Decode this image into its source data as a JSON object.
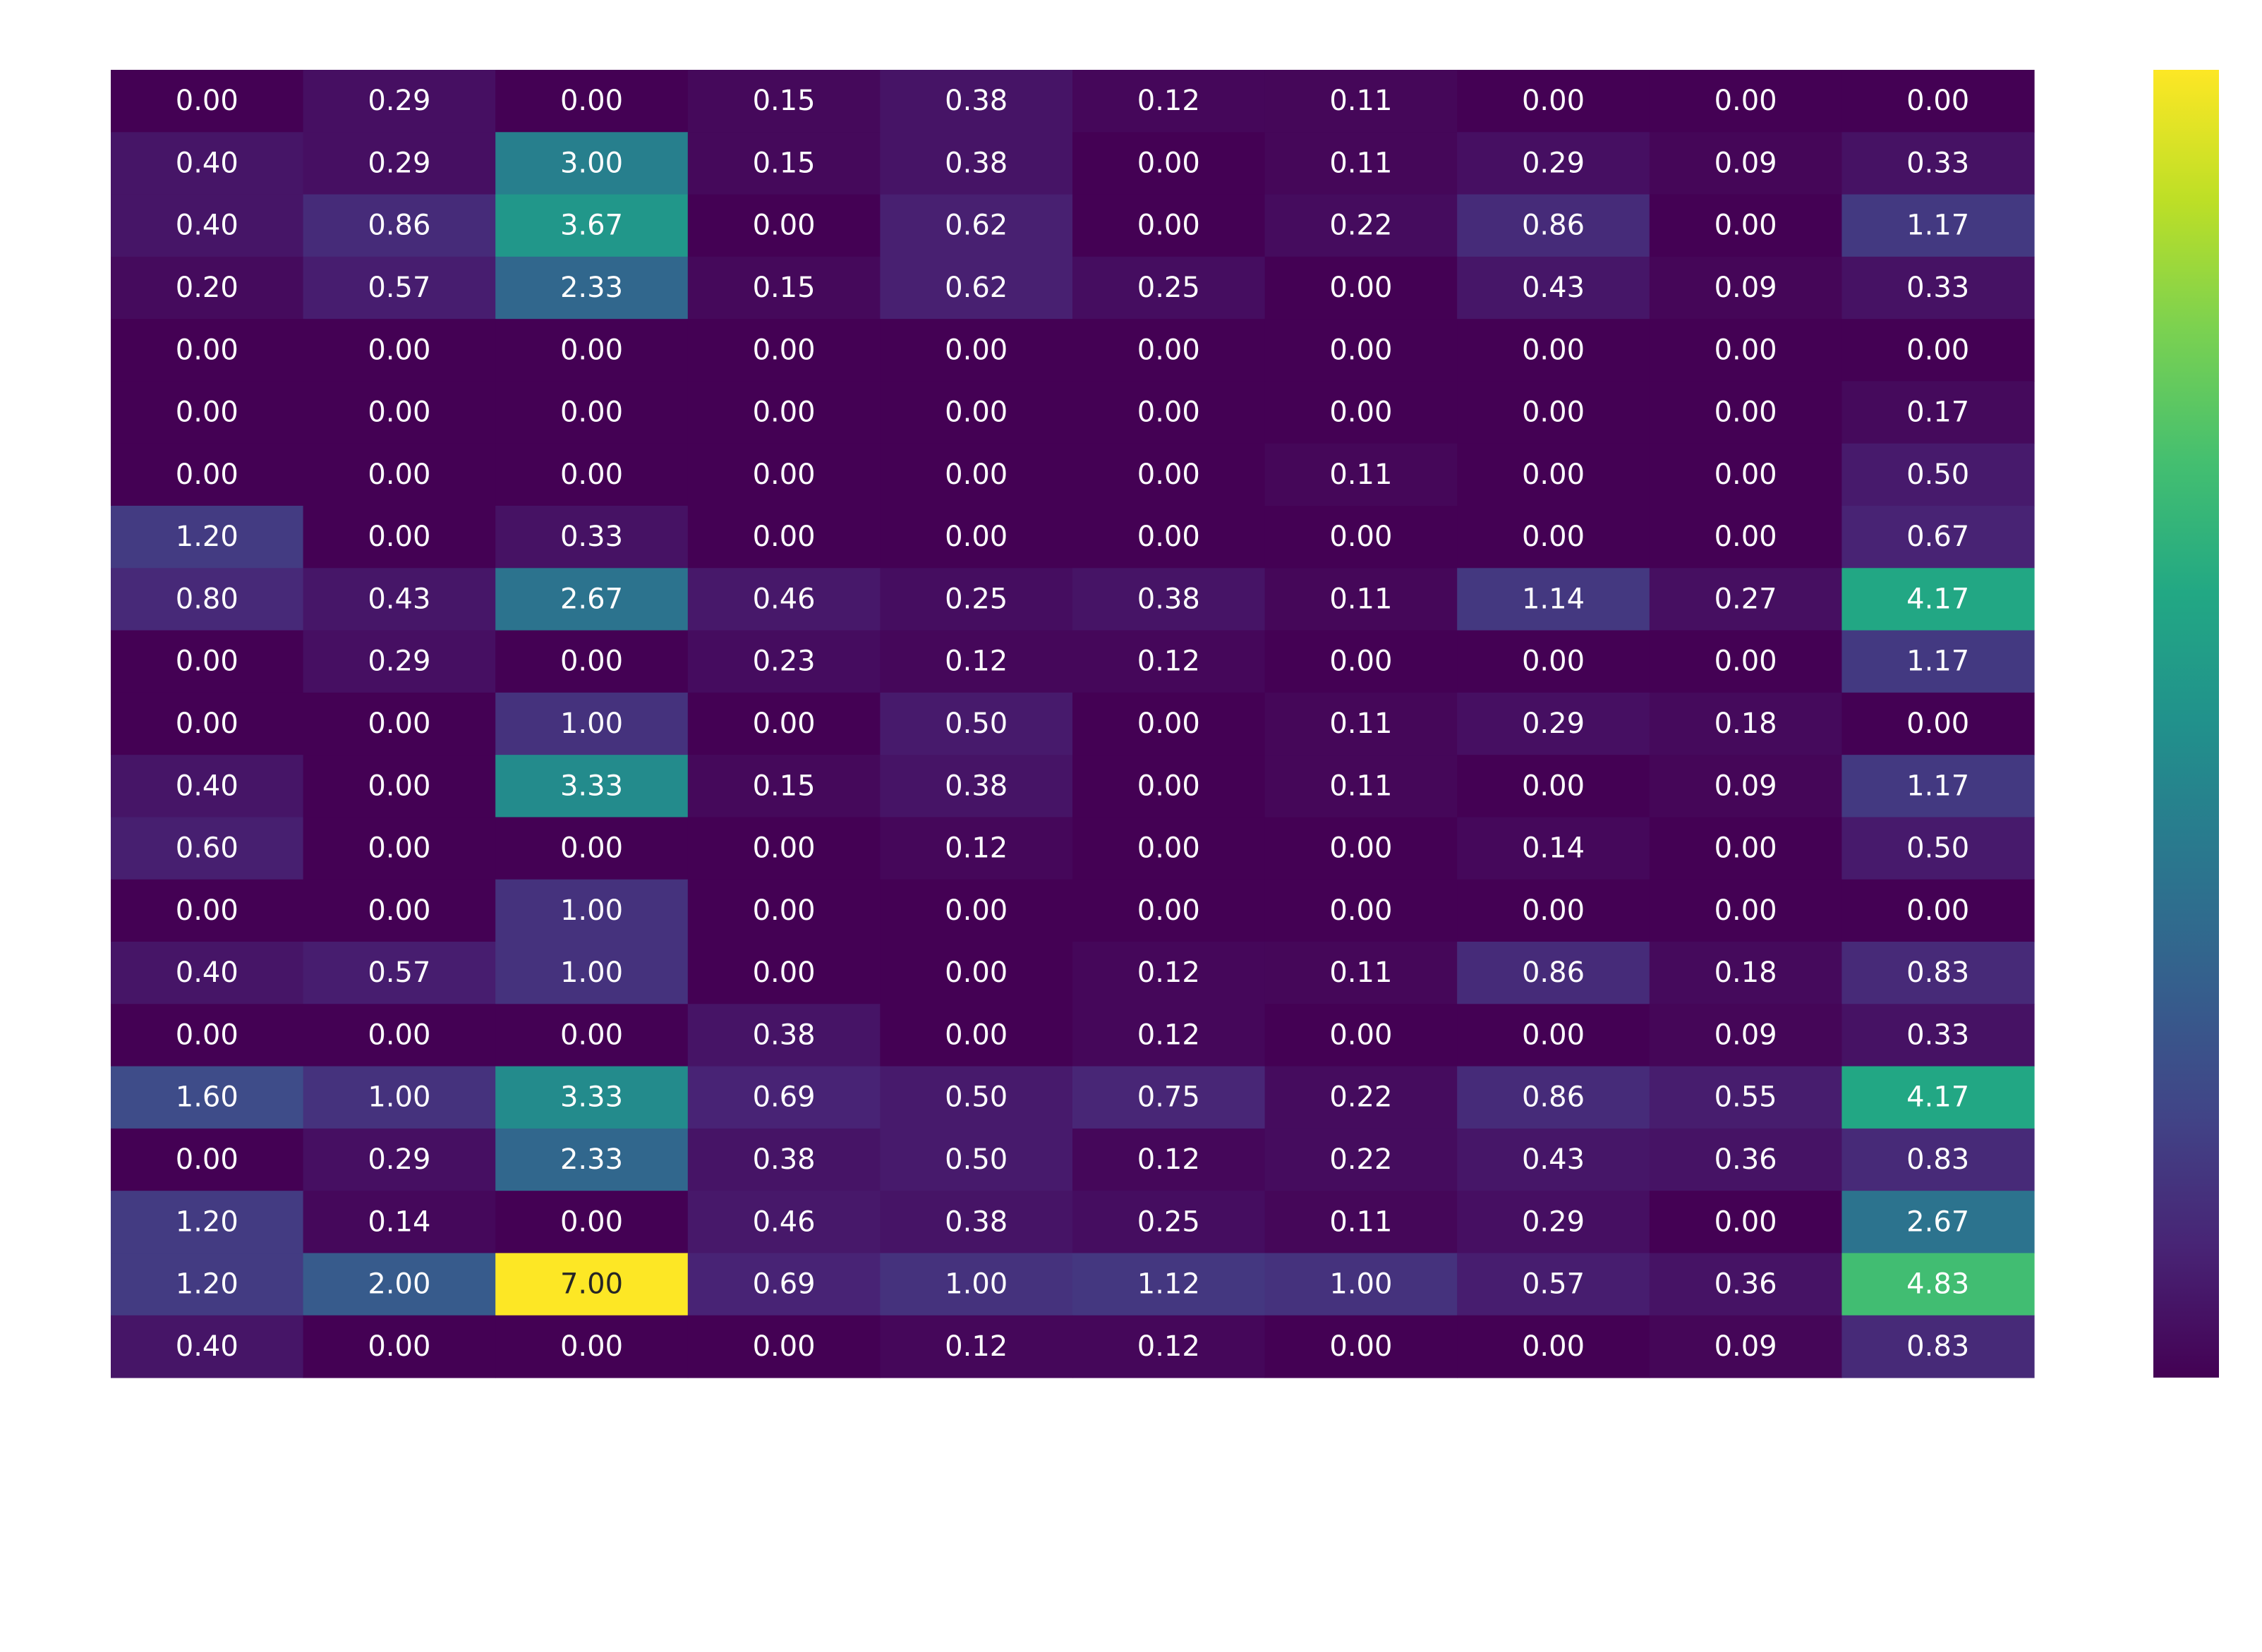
{
  "chart_data": {
    "type": "heatmap",
    "title": "",
    "xlabel": "",
    "ylabel": "",
    "colormap": "viridis",
    "vmin": 0,
    "vmax": 7,
    "colorbar": true,
    "annotation_colors": {
      "on_dark": "#ffffff",
      "on_light": "#262626"
    },
    "values": [
      [
        0.0,
        0.29,
        0.0,
        0.15,
        0.38,
        0.12,
        0.11,
        0.0,
        0.0,
        0.0
      ],
      [
        0.4,
        0.29,
        3.0,
        0.15,
        0.38,
        0.0,
        0.11,
        0.29,
        0.09,
        0.33
      ],
      [
        0.4,
        0.86,
        3.67,
        0.0,
        0.62,
        0.0,
        0.22,
        0.86,
        0.0,
        1.17
      ],
      [
        0.2,
        0.57,
        2.33,
        0.15,
        0.62,
        0.25,
        0.0,
        0.43,
        0.09,
        0.33
      ],
      [
        0.0,
        0.0,
        0.0,
        0.0,
        0.0,
        0.0,
        0.0,
        0.0,
        0.0,
        0.0
      ],
      [
        0.0,
        0.0,
        0.0,
        0.0,
        0.0,
        0.0,
        0.0,
        0.0,
        0.0,
        0.17
      ],
      [
        0.0,
        0.0,
        0.0,
        0.0,
        0.0,
        0.0,
        0.11,
        0.0,
        0.0,
        0.5
      ],
      [
        1.2,
        0.0,
        0.33,
        0.0,
        0.0,
        0.0,
        0.0,
        0.0,
        0.0,
        0.67
      ],
      [
        0.8,
        0.43,
        2.67,
        0.46,
        0.25,
        0.38,
        0.11,
        1.14,
        0.27,
        4.17
      ],
      [
        0.0,
        0.29,
        0.0,
        0.23,
        0.12,
        0.12,
        0.0,
        0.0,
        0.0,
        1.17
      ],
      [
        0.0,
        0.0,
        1.0,
        0.0,
        0.5,
        0.0,
        0.11,
        0.29,
        0.18,
        0.0
      ],
      [
        0.4,
        0.0,
        3.33,
        0.15,
        0.38,
        0.0,
        0.11,
        0.0,
        0.09,
        1.17
      ],
      [
        0.6,
        0.0,
        0.0,
        0.0,
        0.12,
        0.0,
        0.0,
        0.14,
        0.0,
        0.5
      ],
      [
        0.0,
        0.0,
        1.0,
        0.0,
        0.0,
        0.0,
        0.0,
        0.0,
        0.0,
        0.0
      ],
      [
        0.4,
        0.57,
        1.0,
        0.0,
        0.0,
        0.12,
        0.11,
        0.86,
        0.18,
        0.83
      ],
      [
        0.0,
        0.0,
        0.0,
        0.38,
        0.0,
        0.12,
        0.0,
        0.0,
        0.09,
        0.33
      ],
      [
        1.6,
        1.0,
        3.33,
        0.69,
        0.5,
        0.75,
        0.22,
        0.86,
        0.55,
        4.17
      ],
      [
        0.0,
        0.29,
        2.33,
        0.38,
        0.5,
        0.12,
        0.22,
        0.43,
        0.36,
        0.83
      ],
      [
        1.2,
        0.14,
        0.0,
        0.46,
        0.38,
        0.25,
        0.11,
        0.29,
        0.0,
        2.67
      ],
      [
        1.2,
        2.0,
        7.0,
        0.69,
        1.0,
        1.12,
        1.0,
        0.57,
        0.36,
        4.83
      ],
      [
        0.4,
        0.0,
        0.0,
        0.0,
        0.12,
        0.12,
        0.0,
        0.0,
        0.09,
        0.83
      ]
    ]
  }
}
